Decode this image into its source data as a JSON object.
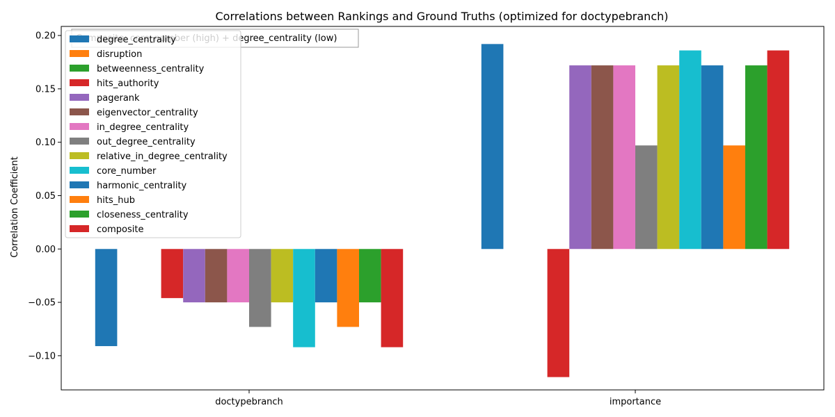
{
  "chart_data": {
    "type": "bar",
    "title": "Correlations between Rankings and Ground Truths (optimized for doctypebranch)",
    "xlabel": "",
    "ylabel": "Correlation Coefficient",
    "categories": [
      "doctypebranch",
      "importance"
    ],
    "ylim": [
      -0.132,
      0.2085
    ],
    "yticks": [
      -0.1,
      -0.05,
      0.0,
      0.05,
      0.1,
      0.15,
      0.2
    ],
    "ytick_labels": [
      "−0.10",
      "−0.05",
      "0.00",
      "0.05",
      "0.10",
      "0.15",
      "0.20"
    ],
    "grid": false,
    "legend_position": "upper-left",
    "annotation": "Composite: core_number (high) + degree_centrality (low)",
    "series": [
      {
        "name": "degree_centrality",
        "color": "#1f77b4",
        "values": [
          -0.091,
          0.192
        ]
      },
      {
        "name": "disruption",
        "color": "#ff7f0e",
        "values": [
          0.0,
          0.0
        ]
      },
      {
        "name": "betweenness_centrality",
        "color": "#2ca02c",
        "values": [
          0.0,
          0.0
        ]
      },
      {
        "name": "hits_authority",
        "color": "#d62728",
        "values": [
          -0.046,
          -0.12
        ]
      },
      {
        "name": "pagerank",
        "color": "#9467bd",
        "values": [
          -0.05,
          0.172
        ]
      },
      {
        "name": "eigenvector_centrality",
        "color": "#8c564b",
        "values": [
          -0.05,
          0.172
        ]
      },
      {
        "name": "in_degree_centrality",
        "color": "#e377c2",
        "values": [
          -0.05,
          0.172
        ]
      },
      {
        "name": "out_degree_centrality",
        "color": "#7f7f7f",
        "values": [
          -0.073,
          0.097
        ]
      },
      {
        "name": "relative_in_degree_centrality",
        "color": "#bcbd22",
        "values": [
          -0.05,
          0.172
        ]
      },
      {
        "name": "core_number",
        "color": "#17becf",
        "values": [
          -0.092,
          0.186
        ]
      },
      {
        "name": "harmonic_centrality",
        "color": "#1f77b4",
        "values": [
          -0.05,
          0.172
        ]
      },
      {
        "name": "hits_hub",
        "color": "#ff7f0e",
        "values": [
          -0.073,
          0.097
        ]
      },
      {
        "name": "closeness_centrality",
        "color": "#2ca02c",
        "values": [
          -0.05,
          0.172
        ]
      },
      {
        "name": "composite",
        "color": "#d62728",
        "values": [
          -0.092,
          0.186
        ]
      }
    ]
  }
}
